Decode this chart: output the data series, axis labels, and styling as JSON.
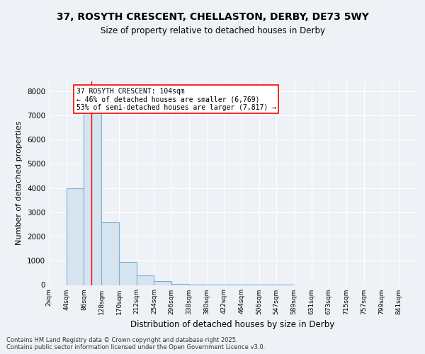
{
  "title": "37, ROSYTH CRESCENT, CHELLASTON, DERBY, DE73 5WY",
  "subtitle": "Size of property relative to detached houses in Derby",
  "xlabel": "Distribution of detached houses by size in Derby",
  "ylabel": "Number of detached properties",
  "bar_color": "#d6e4f0",
  "bar_edge_color": "#7aafd4",
  "red_line_x": 104,
  "annotation_text": "37 ROSYTH CRESCENT: 104sqm\n← 46% of detached houses are smaller (6,769)\n53% of semi-detached houses are larger (7,817) →",
  "bin_edges": [
    2,
    44,
    86,
    128,
    170,
    212,
    254,
    296,
    338,
    380,
    422,
    464,
    506,
    547,
    589,
    631,
    673,
    715,
    757,
    799,
    841
  ],
  "bar_heights": [
    0,
    4000,
    7600,
    2600,
    950,
    380,
    150,
    45,
    25,
    8,
    3,
    3,
    1,
    1,
    0,
    0,
    0,
    0,
    0,
    0
  ],
  "ylim": [
    0,
    8400
  ],
  "yticks": [
    0,
    1000,
    2000,
    3000,
    4000,
    5000,
    6000,
    7000,
    8000
  ],
  "footer_text": "Contains HM Land Registry data © Crown copyright and database right 2025.\nContains public sector information licensed under the Open Government Licence v3.0.",
  "bg_color": "#eef2f7",
  "grid_color": "#ffffff"
}
